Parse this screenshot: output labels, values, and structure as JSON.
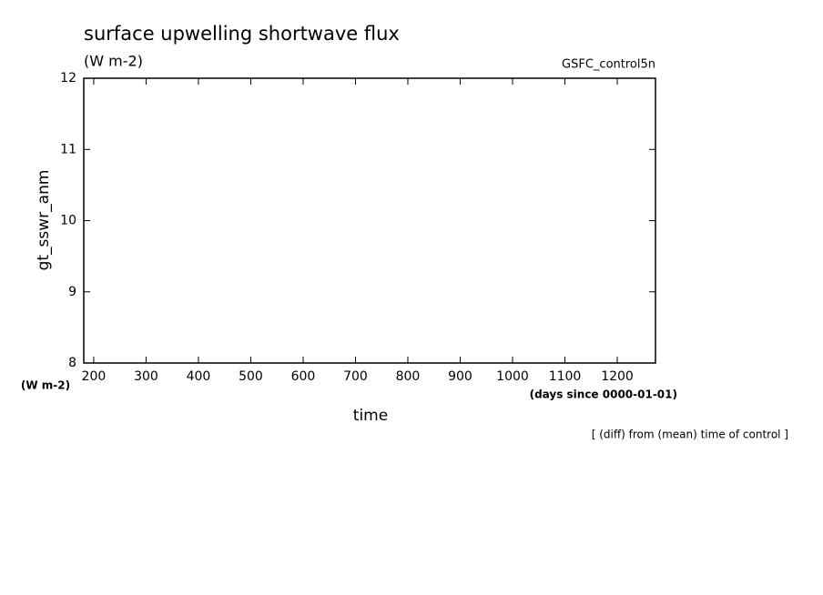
{
  "chart_data": {
    "type": "line",
    "title": "surface upwelling shortwave flux",
    "subtitle": "(W m-2)",
    "annotation_right": "GSFC_control5n",
    "y_label": "gt_sswr_anm",
    "y_unit": "(W m-2)",
    "x_label": "time",
    "x_unit": "(days since 0000-01-01)",
    "note": "[ (diff) from (mean) time of control ]",
    "xlim": [
      181,
      1273
    ],
    "xticks": [
      200,
      300,
      400,
      500,
      600,
      700,
      800,
      900,
      1000,
      1100,
      1200
    ],
    "ylim": [
      8,
      12
    ],
    "yticks": [
      8,
      9,
      10,
      11,
      12
    ],
    "series": []
  }
}
